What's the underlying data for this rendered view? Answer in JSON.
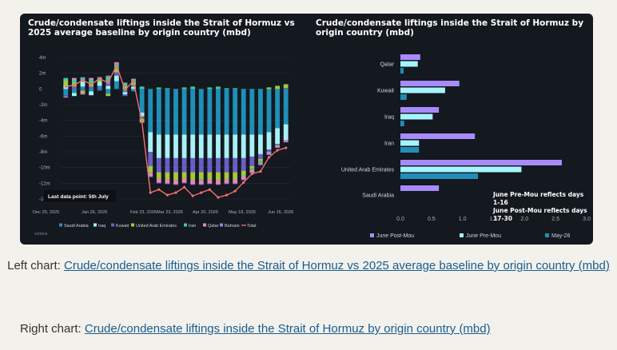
{
  "left_chart": {
    "title": "Crude/condensate liftings inside the Strait of Hormuz vs 2025 average baseline by origin country (mbd)",
    "annotation": "Last data point: 5th July",
    "source_mark": "vortexa"
  },
  "right_chart": {
    "title": "Crude/condensate liftings inside the Strait of Hormuz by origin country (mbd)",
    "note_line1": "June Pre-Mou reflects days 1-16",
    "note_line2": "June Post-Mou reflects days 17-30"
  },
  "captions": {
    "left_prefix": "Left chart: ",
    "left_link": "Crude/condensate liftings inside the Strait of Hormuz vs 2025 average baseline by origin country (mbd)",
    "right_prefix": "Right chart: ",
    "right_link": "Crude/condensate liftings inside the Strait of Hormuz by origin country (mbd)"
  },
  "colors": {
    "Saudi Arabia": "#1f8fb8",
    "Iraq": "#a8f0f5",
    "Kuwait": "#6a5ec9",
    "United Arab Emirates": "#a3c93a",
    "Iran": "#3ec9a8",
    "Qatar": "#e887b8",
    "Bahrain": "#9b7fe6",
    "Total": "#f07070",
    "June Post-Mou": "#a78bfa",
    "June Pre-Mou": "#a5f3fc",
    "May-26": "#1f8fb8"
  },
  "chart_data": [
    {
      "type": "bar",
      "stacked": true,
      "ylim": [
        -14,
        4
      ],
      "yticks": [
        "4m",
        "2m",
        "0",
        "-2m",
        "-4m",
        "-6m",
        "-8m",
        "-10m",
        "-12m",
        "-14m"
      ],
      "xticks": [
        "Dec 29, 2025",
        "Jan 26, 2026",
        "Feb 23, 2026",
        "Mar 23, 2026",
        "Apr 20, 2026",
        "May 18, 2026",
        "Jun 15, 2026"
      ],
      "legend_position": "bottom",
      "x": [
        "2025-12-29",
        "2026-01-05",
        "2026-01-12",
        "2026-01-19",
        "2026-01-26",
        "2026-02-02",
        "2026-02-09",
        "2026-02-16",
        "2026-02-23",
        "2026-03-02",
        "2026-03-09",
        "2026-03-16",
        "2026-03-23",
        "2026-03-30",
        "2026-04-06",
        "2026-04-13",
        "2026-04-20",
        "2026-04-27",
        "2026-05-04",
        "2026-05-11",
        "2026-05-18",
        "2026-05-25",
        "2026-06-01",
        "2026-06-08",
        "2026-06-15",
        "2026-06-22",
        "2026-06-29"
      ],
      "series": [
        {
          "name": "Saudi Arabia",
          "values": [
            -0.8,
            -0.5,
            0.3,
            -0.3,
            0.4,
            -0.6,
            1.0,
            -0.4,
            -0.3,
            -3.0,
            -5.5,
            -5.8,
            -5.8,
            -5.8,
            -5.8,
            -5.8,
            -5.8,
            -5.8,
            -5.8,
            -5.8,
            -5.8,
            -5.8,
            -5.8,
            -5.8,
            -5.5,
            -5.0,
            -4.5
          ]
        },
        {
          "name": "Iraq",
          "values": [
            0.5,
            -0.4,
            0.6,
            -0.5,
            0.5,
            0.4,
            0.7,
            -0.3,
            0.3,
            -0.5,
            -2.5,
            -3.0,
            -3.0,
            -3.0,
            -3.0,
            -3.0,
            -3.0,
            -3.0,
            -3.0,
            -3.0,
            -3.0,
            -3.0,
            -2.8,
            -2.5,
            -2.2,
            -2.0,
            -2.0
          ]
        },
        {
          "name": "Kuwait",
          "values": [
            -0.2,
            0.3,
            -0.2,
            0.3,
            -0.2,
            0.5,
            0.4,
            -0.2,
            0.2,
            -0.3,
            -1.8,
            -1.8,
            -1.8,
            -1.8,
            -1.8,
            -1.8,
            -1.8,
            -1.8,
            -1.8,
            -1.8,
            -1.8,
            -1.6,
            -1.2,
            -0.6,
            -0.3,
            -0.1,
            0.1
          ]
        },
        {
          "name": "United Arab Emirates",
          "values": [
            0.6,
            0.5,
            -0.3,
            0.5,
            0.3,
            -0.3,
            0.5,
            0.4,
            0.3,
            -0.4,
            -0.8,
            -0.8,
            -0.9,
            -1.0,
            -0.8,
            -1.0,
            -0.9,
            -0.9,
            -1.0,
            -0.9,
            -0.9,
            -0.6,
            -0.3,
            -0.3,
            0.2,
            0.4,
            0.5
          ]
        },
        {
          "name": "Iran",
          "values": [
            0.3,
            0.4,
            0.5,
            0.4,
            0.2,
            0.6,
            0.6,
            0.3,
            0.4,
            0.3,
            -0.1,
            0.2,
            0.1,
            0.0,
            0.2,
            0.3,
            -0.1,
            0.2,
            0.3,
            0.1,
            0.1,
            -0.1,
            -0.2,
            -0.2,
            -0.1,
            -0.1,
            0.0
          ]
        },
        {
          "name": "Qatar",
          "values": [
            -0.1,
            0.2,
            -0.2,
            0.2,
            0.1,
            0.1,
            0.2,
            0.1,
            0.1,
            -0.1,
            -0.4,
            -0.5,
            -0.5,
            -0.5,
            -0.5,
            -0.5,
            -0.5,
            -0.5,
            -0.5,
            -0.5,
            -0.5,
            -0.4,
            -0.3,
            -0.2,
            -0.2,
            -0.2,
            -0.2
          ]
        },
        {
          "name": "Bahrain",
          "values": [
            0.0,
            0.0,
            0.1,
            0.0,
            0.0,
            0.1,
            0.0,
            0.0,
            0.0,
            0.0,
            -0.1,
            -0.1,
            -0.1,
            -0.1,
            -0.1,
            -0.1,
            -0.1,
            -0.1,
            -0.1,
            -0.1,
            -0.1,
            -0.1,
            -0.1,
            -0.1,
            -0.1,
            -0.1,
            -0.1
          ]
        },
        {
          "name": "Total",
          "type": "line",
          "values": [
            0.3,
            0.5,
            1.1,
            0.6,
            1.3,
            0.8,
            3.0,
            -0.1,
            1.0,
            -4.2,
            -13.2,
            -12.8,
            -13.5,
            -13.2,
            -12.5,
            -13.6,
            -13.2,
            -12.8,
            -13.8,
            -13.5,
            -13.0,
            -11.9,
            -10.8,
            -10.5,
            -8.7,
            -7.8,
            -7.5
          ]
        }
      ]
    },
    {
      "type": "bar",
      "orientation": "horizontal",
      "categories": [
        "Qatar",
        "Kuwait",
        "Iraq",
        "Iran",
        "United Arab Emirates",
        "Saudi Arabia"
      ],
      "xlim": [
        0,
        3.0
      ],
      "xticks": [
        "0.0",
        "0.5",
        "1.0",
        "1.5",
        "2.0",
        "2.5",
        "3.0"
      ],
      "legend_position": "bottom",
      "series": [
        {
          "name": "June Post-Mou",
          "values": [
            0.32,
            0.95,
            0.62,
            1.2,
            2.6,
            0.62
          ]
        },
        {
          "name": "June Pre-Mou",
          "values": [
            0.28,
            0.72,
            0.52,
            0.3,
            1.95,
            0.0
          ]
        },
        {
          "name": "May-26",
          "values": [
            0.05,
            0.1,
            0.06,
            0.3,
            1.25,
            0.0
          ]
        }
      ]
    }
  ]
}
